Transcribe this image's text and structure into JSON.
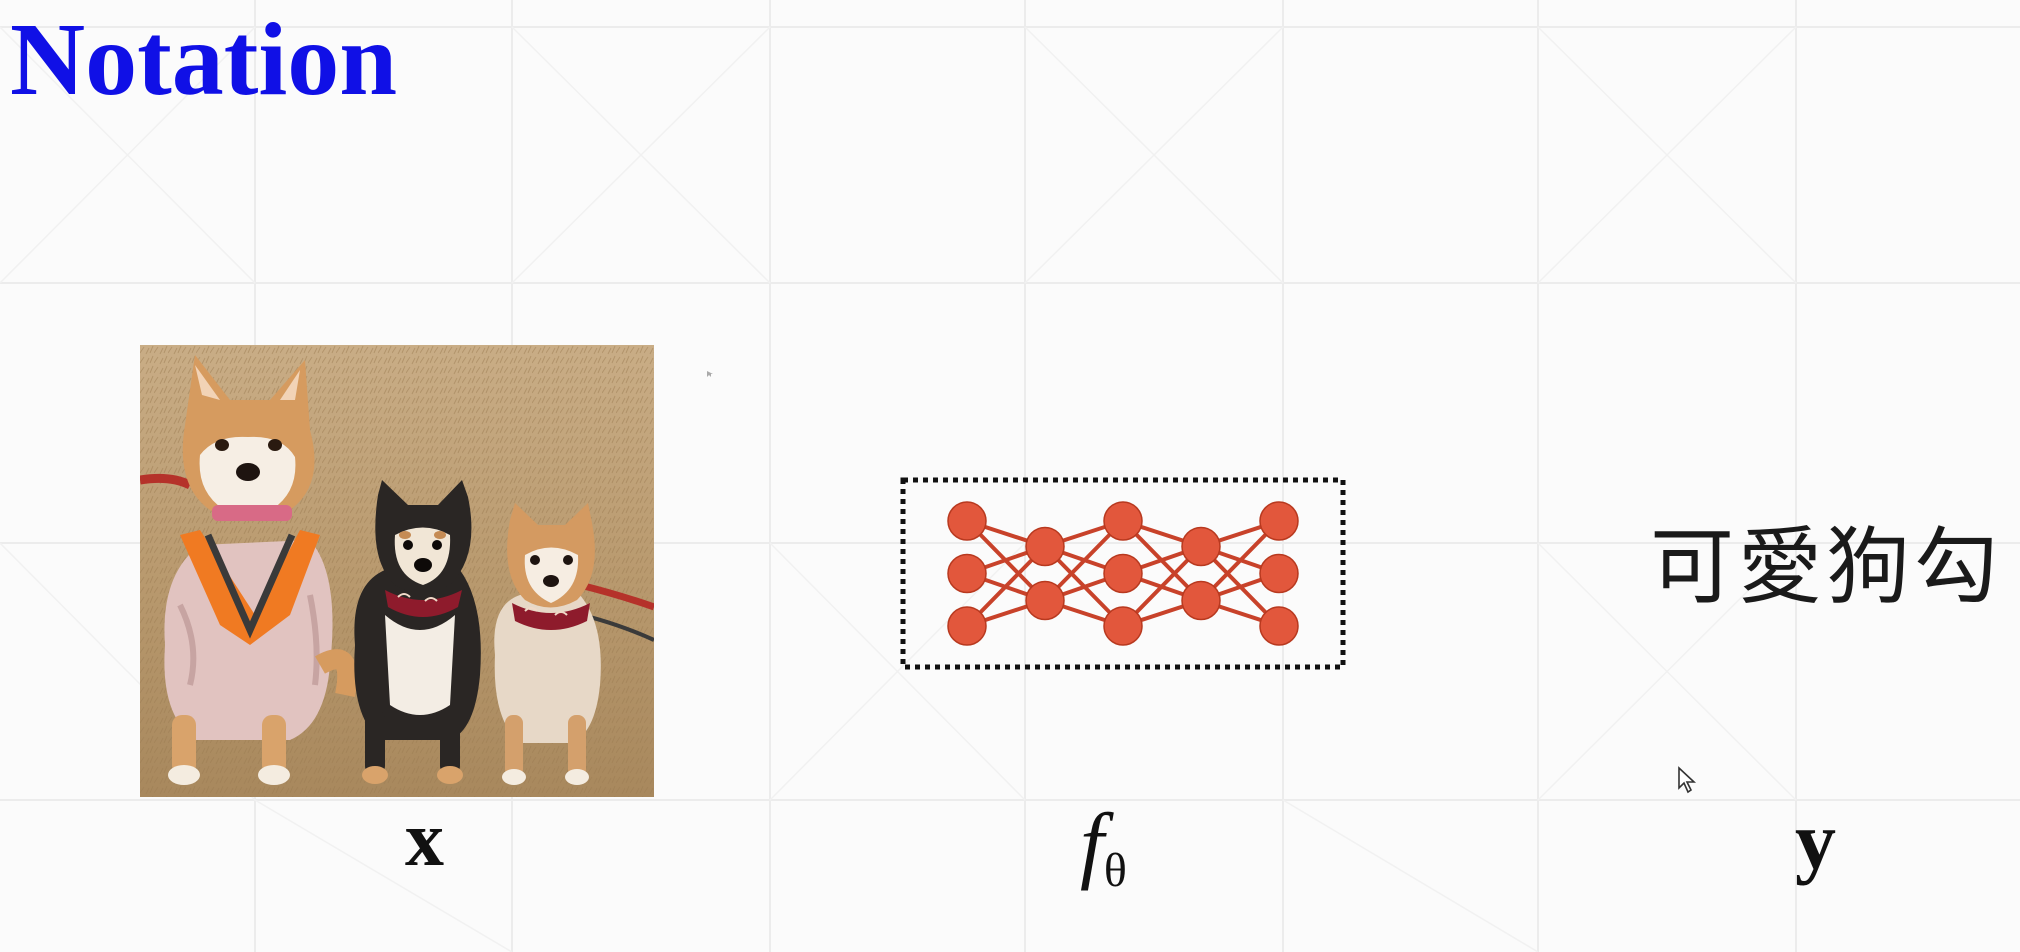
{
  "slide": {
    "title": "Notation",
    "input_label": "x",
    "model_label_f": "f",
    "model_label_theta": "θ",
    "output_label": "y",
    "output_text": "可愛狗勾"
  },
  "colors": {
    "title": "#1010e6",
    "network_node": "#e2573c",
    "network_edge": "#c8422a",
    "background": "#fbfbfb"
  },
  "network": {
    "layers": [
      3,
      2,
      3,
      2,
      3
    ]
  },
  "icons": {
    "cursor": "mouse-pointer-icon"
  }
}
